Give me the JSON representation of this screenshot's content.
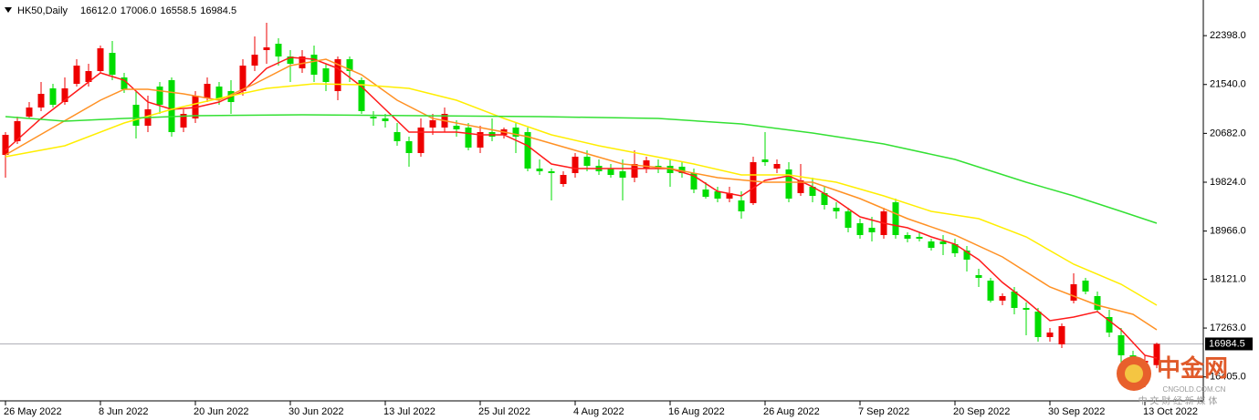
{
  "chart_data": {
    "type": "candlestick",
    "symbol": "HK50,Daily",
    "header_values": [
      "16612.0",
      "17006.0",
      "16558.5",
      "16984.5"
    ],
    "categories": [
      "26 May 2022",
      null,
      null,
      null,
      null,
      null,
      null,
      null,
      "8 Jun 2022",
      null,
      null,
      null,
      null,
      null,
      null,
      null,
      "20 Jun 2022",
      null,
      null,
      null,
      null,
      null,
      null,
      null,
      "30 Jun 2022",
      null,
      null,
      null,
      null,
      null,
      null,
      null,
      "13 Jul 2022",
      null,
      null,
      null,
      null,
      null,
      null,
      null,
      "25 Jul 2022",
      null,
      null,
      null,
      null,
      null,
      null,
      null,
      "4 Aug 2022",
      null,
      null,
      null,
      null,
      null,
      null,
      null,
      "16 Aug 2022",
      null,
      null,
      null,
      null,
      null,
      null,
      null,
      "26 Aug 2022",
      null,
      null,
      null,
      null,
      null,
      null,
      null,
      "7 Sep 2022",
      null,
      null,
      null,
      null,
      null,
      null,
      null,
      "20 Sep 2022",
      null,
      null,
      null,
      null,
      null,
      null,
      null,
      "30 Sep 2022",
      null,
      null,
      null,
      null,
      null,
      null,
      null,
      "13 Oct 2022",
      null
    ],
    "open": [
      20304,
      20544,
      20976,
      21136,
      21472,
      21232,
      21552,
      21584,
      21776,
      22096,
      21664,
      21184,
      20816,
      21504,
      21616,
      20784,
      20944,
      21296,
      21504,
      21424,
      21424,
      21872,
      22144,
      22256,
      22032,
      21824,
      22064,
      21824,
      21424,
      21984,
      21616,
      20976,
      20944,
      20704,
      20544,
      20336,
      20784,
      20784,
      20816,
      20784,
      20432,
      20704,
      20656,
      20784,
      20704,
      20064,
      20016,
      19792,
      19984,
      20272,
      20112,
      20064,
      20016,
      19904,
      20064,
      20112,
      20112,
      20096,
      19984,
      19696,
      19664,
      19536,
      19504,
      19456,
      20224,
      20064,
      20048,
      19632,
      19744,
      19632,
      19376,
      19312,
      19104,
      19024,
      18896,
      19472,
      18896,
      18864,
      18784,
      18784,
      18736,
      18624,
      18192,
      18096,
      17744,
      17904,
      17616,
      17552,
      17104,
      16976,
      17744,
      18096,
      17824,
      17456,
      17136,
      16784,
      16656,
      16612
    ],
    "high": [
      20704,
      20976,
      21232,
      21584,
      21552,
      21664,
      21984,
      21904,
      22224,
      22304,
      21744,
      21424,
      21344,
      21584,
      21664,
      21104,
      21424,
      21664,
      21584,
      21616,
      21984,
      22384,
      22624,
      22352,
      22144,
      22144,
      22224,
      21904,
      22032,
      22032,
      21664,
      21072,
      21024,
      20864,
      20624,
      20944,
      21024,
      21136,
      20912,
      20864,
      20816,
      20944,
      20784,
      20864,
      20784,
      20224,
      20064,
      20016,
      20336,
      20384,
      20224,
      20144,
      20224,
      20384,
      20272,
      20224,
      20224,
      20176,
      20064,
      19824,
      19744,
      19744,
      19664,
      20272,
      20704,
      20224,
      20176,
      20144,
      19904,
      19744,
      19472,
      19376,
      19184,
      19216,
      19376,
      19536,
      18944,
      18944,
      18832,
      18896,
      18832,
      18704,
      18304,
      18144,
      17872,
      17984,
      17712,
      17616,
      17264,
      17344,
      18224,
      18144,
      17904,
      17584,
      17264,
      16864,
      16784,
      17006
    ],
    "low": [
      19904,
      20496,
      20944,
      21072,
      21136,
      21184,
      21504,
      21504,
      21744,
      21616,
      21392,
      20592,
      20704,
      21024,
      20624,
      20704,
      20864,
      21232,
      21184,
      21024,
      21344,
      21776,
      21904,
      21872,
      21584,
      21744,
      21584,
      21424,
      21264,
      21584,
      21024,
      20816,
      20784,
      20464,
      20096,
      20272,
      20656,
      20704,
      20624,
      20384,
      20336,
      20544,
      20592,
      20336,
      20016,
      19952,
      19504,
      19744,
      19904,
      20016,
      19952,
      19904,
      19504,
      19824,
      19984,
      19984,
      19744,
      19904,
      19632,
      19536,
      19472,
      19472,
      19184,
      19424,
      20112,
      19984,
      19472,
      19584,
      19472,
      19344,
      19184,
      18944,
      18832,
      18784,
      18832,
      18832,
      18768,
      18784,
      18624,
      18544,
      18512,
      18256,
      17984,
      17712,
      17664,
      17504,
      17136,
      17024,
      17024,
      16912,
      17696,
      17856,
      17552,
      17104,
      16304,
      16624,
      16224,
      16558.5
    ],
    "close": [
      20656,
      20896,
      21136,
      21376,
      21184,
      21472,
      21872,
      21776,
      22176,
      21712,
      21456,
      20816,
      21104,
      21184,
      20704,
      21024,
      21344,
      21552,
      21296,
      21232,
      21872,
      22064,
      22192,
      22032,
      21904,
      22032,
      21712,
      21584,
      21984,
      21776,
      21072,
      20944,
      20896,
      20544,
      20336,
      20784,
      20912,
      21024,
      20752,
      20432,
      20704,
      20624,
      20752,
      20624,
      20064,
      20016,
      19984,
      19952,
      20272,
      20112,
      20016,
      19952,
      19904,
      20144,
      20208,
      20064,
      19984,
      19984,
      19696,
      19568,
      19536,
      19632,
      19312,
      20176,
      20176,
      20144,
      19536,
      19856,
      19584,
      19424,
      19312,
      19024,
      18896,
      18944,
      19312,
      18896,
      18832,
      18832,
      18672,
      18736,
      18576,
      18464,
      18144,
      17744,
      17824,
      17616,
      17584,
      17104,
      17184,
      17296,
      18032,
      17904,
      17584,
      17184,
      16784,
      16704,
      16688,
      16984.5
    ],
    "up_color": "#ee0000",
    "down_color": "#00dd00",
    "lines": [
      {
        "color": "#ff1a1a",
        "x": [
          0,
          3,
          6,
          8,
          10,
          12,
          14,
          16,
          18,
          20,
          22,
          24,
          26,
          28,
          30,
          32,
          34,
          36,
          38,
          40,
          42,
          44,
          46,
          48,
          50,
          52,
          54,
          56,
          58,
          60,
          62,
          64,
          66,
          68,
          70,
          72,
          74,
          76,
          78,
          80,
          82,
          84,
          86,
          88,
          90,
          92,
          94,
          96,
          97
        ],
        "values": [
          20384,
          20944,
          21424,
          21744,
          21616,
          21232,
          21104,
          21136,
          21232,
          21424,
          21824,
          22016,
          21984,
          21824,
          21504,
          21104,
          20704,
          20704,
          20704,
          20656,
          20656,
          20464,
          20144,
          20064,
          20064,
          20064,
          20064,
          20064,
          19936,
          19664,
          19584,
          19856,
          19936,
          19744,
          19504,
          19216,
          19104,
          19024,
          18864,
          18736,
          18464,
          18064,
          17744,
          17392,
          17456,
          17552,
          17232,
          16784,
          16736
        ]
      },
      {
        "color": "#ff9124",
        "x": [
          0,
          4,
          8,
          10,
          12,
          15,
          18,
          21,
          24,
          27,
          30,
          33,
          36,
          40,
          44,
          48,
          52,
          56,
          60,
          64,
          68,
          72,
          76,
          80,
          84,
          88,
          92,
          95,
          97
        ],
        "values": [
          20304,
          20784,
          21264,
          21456,
          21456,
          21376,
          21264,
          21552,
          21872,
          21984,
          21712,
          21264,
          20944,
          20784,
          20624,
          20384,
          20144,
          20064,
          19904,
          19824,
          19824,
          19536,
          19184,
          18896,
          18512,
          17984,
          17664,
          17504,
          17232
        ]
      },
      {
        "color": "#ffee00",
        "x": [
          0,
          5,
          10,
          14,
          18,
          22,
          26,
          30,
          34,
          38,
          42,
          46,
          50,
          54,
          58,
          62,
          66,
          70,
          74,
          78,
          82,
          86,
          90,
          94,
          97
        ],
        "values": [
          20272,
          20464,
          20864,
          21104,
          21296,
          21472,
          21552,
          21536,
          21472,
          21264,
          20944,
          20656,
          20464,
          20304,
          20144,
          19952,
          19952,
          19824,
          19584,
          19312,
          19184,
          18864,
          18384,
          18032,
          17664
        ]
      },
      {
        "color": "#33e033",
        "x": [
          0,
          5,
          10,
          16,
          25,
          35,
          45,
          55,
          62,
          68,
          74,
          80,
          86,
          90,
          94,
          97
        ],
        "values": [
          20976,
          20896,
          20944,
          20992,
          21008,
          20992,
          20976,
          20944,
          20848,
          20688,
          20496,
          20224,
          19824,
          19584,
          19312,
          19104
        ]
      }
    ],
    "current_price": 16984.5,
    "ylim": [
      15984,
      23024
    ],
    "yticks": [
      {
        "value": 22398,
        "label": "22398.0"
      },
      {
        "value": 21540,
        "label": "21540.0"
      },
      {
        "value": 20682,
        "label": "20682.0"
      },
      {
        "value": 19824,
        "label": "19824.0"
      },
      {
        "value": 18966,
        "label": "18966.0"
      },
      {
        "value": 18121,
        "label": "18121.0"
      },
      {
        "value": 17263,
        "label": "17263.0"
      },
      {
        "value": 16405,
        "label": "16405.0"
      }
    ]
  },
  "watermark": {
    "title": "中金网",
    "site": "CNGOLD.COM.CN",
    "slogan": "中 文 财 经 新 媒 体"
  }
}
